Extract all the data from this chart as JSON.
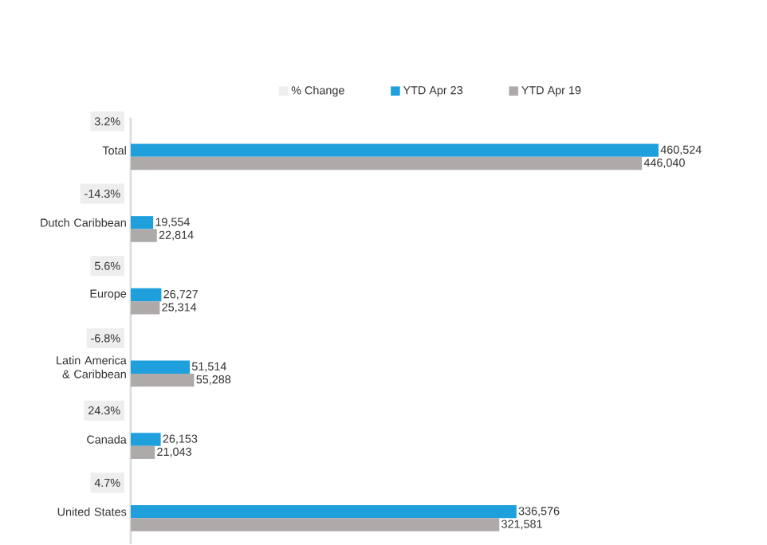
{
  "chart_data": {
    "type": "bar",
    "orientation": "horizontal",
    "categories": [
      "Total",
      "Dutch Caribbean",
      "Europe",
      "Latin America & Caribbean",
      "Canada",
      "United States"
    ],
    "series": [
      {
        "name": "% Change",
        "color": "#eeeeee",
        "values": [
          null,
          null,
          null,
          null,
          null,
          null
        ],
        "value_labels": [
          "3.2%",
          "-14.3%",
          "5.6%",
          "-6.8%",
          "24.3%",
          "4.7%"
        ]
      },
      {
        "name": "YTD Apr 23",
        "color": "#1fa0dc",
        "values": [
          460524,
          19554,
          26727,
          51514,
          26153,
          336576
        ],
        "value_labels": [
          "460,524",
          "19,554",
          "26,727",
          "51,514",
          "26,153",
          "336,576"
        ]
      },
      {
        "name": "YTD Apr 19",
        "color": "#aeaaa9",
        "values": [
          446040,
          22814,
          25314,
          55288,
          21043,
          321581
        ],
        "value_labels": [
          "446,040",
          "22,814",
          "25,314",
          "55,288",
          "21,043",
          "321,581"
        ]
      }
    ],
    "legend": "top",
    "tick_labels": "y"
  }
}
